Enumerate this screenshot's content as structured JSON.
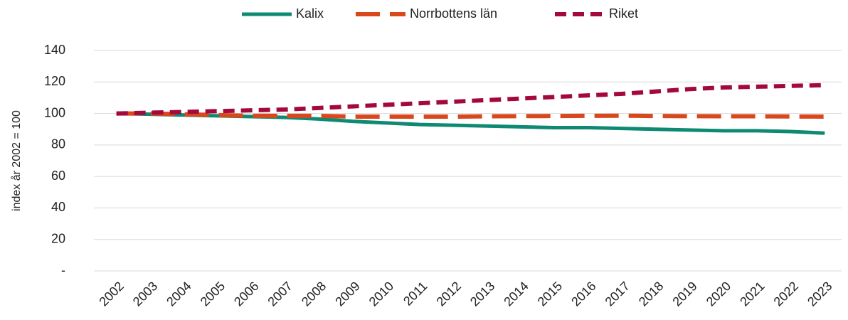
{
  "chart_data": {
    "type": "line",
    "y_axis_label": "index år 2002 = 100",
    "categories": [
      "2002",
      "2003",
      "2004",
      "2005",
      "2006",
      "2007",
      "2008",
      "2009",
      "2010",
      "2011",
      "2012",
      "2013",
      "2014",
      "2015",
      "2016",
      "2017",
      "2018",
      "2019",
      "2020",
      "2021",
      "2022",
      "2023"
    ],
    "series": [
      {
        "name": "Kalix",
        "color": "#0e8a73",
        "style": "solid",
        "values": [
          100,
          99.5,
          99,
          98.5,
          98,
          97.5,
          96.5,
          95,
          94,
          93,
          92.5,
          92,
          91.5,
          91,
          91,
          90.5,
          90,
          89.5,
          89,
          89,
          88.5,
          87.5
        ]
      },
      {
        "name": "Norrbottens län",
        "color": "#d9481c",
        "style": "long-dash",
        "values": [
          100,
          100,
          99.5,
          99,
          98.5,
          98.5,
          98.5,
          98,
          98,
          98,
          98,
          98.2,
          98.3,
          98.4,
          98.5,
          98.6,
          98.4,
          98.3,
          98.2,
          98.2,
          98.1,
          98
        ]
      },
      {
        "name": "Riket",
        "color": "#a3093f",
        "style": "dash",
        "values": [
          100,
          100.5,
          101,
          101.5,
          102,
          102.5,
          103.5,
          104.5,
          105.5,
          106.5,
          107.5,
          108.5,
          109.5,
          110.5,
          111.5,
          112.5,
          114,
          115.5,
          116.5,
          117,
          117.5,
          118
        ]
      }
    ],
    "ylim": [
      0,
      140
    ],
    "yticks": [
      {
        "value": 0,
        "label": "-"
      },
      20,
      40,
      60,
      80,
      100,
      120,
      140
    ],
    "grid": true,
    "legend": "top"
  }
}
